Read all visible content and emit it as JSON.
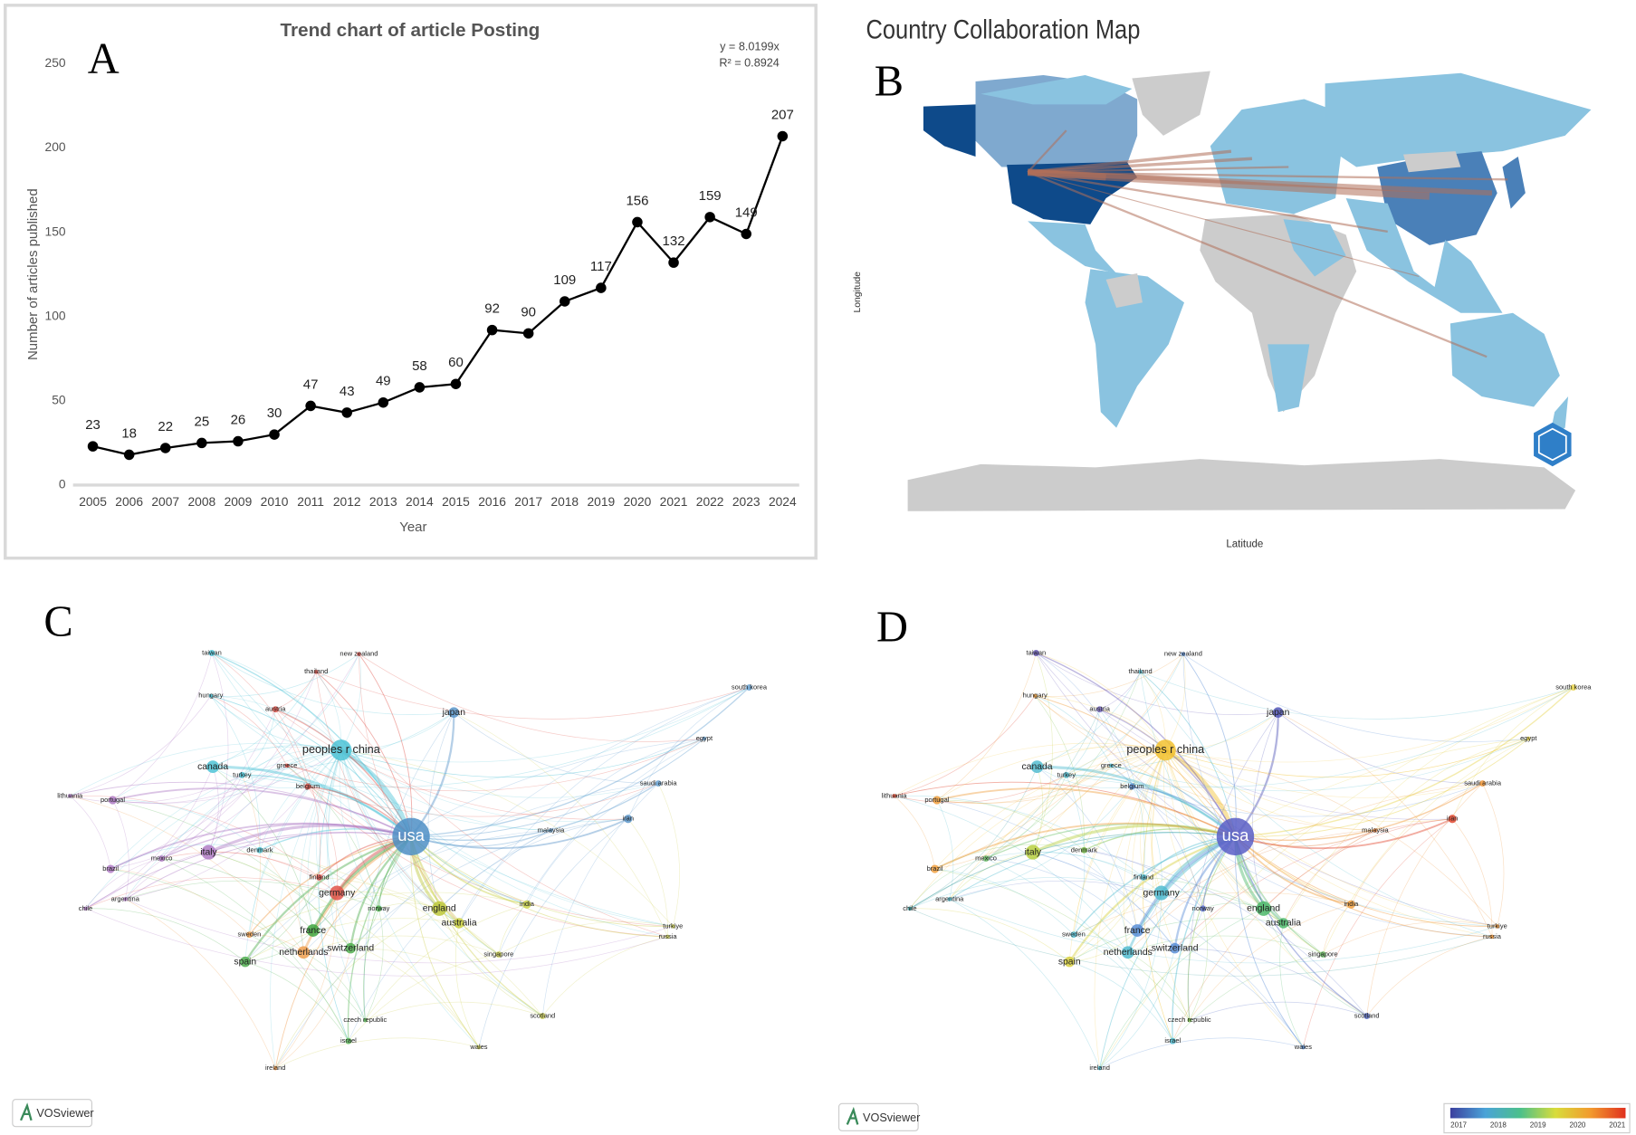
{
  "chart_data": {
    "type": "line",
    "title": "Trend chart of article Posting",
    "panel": "A",
    "categories": [
      "2005",
      "2006",
      "2007",
      "2008",
      "2009",
      "2010",
      "2011",
      "2012",
      "2013",
      "2014",
      "2015",
      "2016",
      "2017",
      "2018",
      "2019",
      "2020",
      "2021",
      "2022",
      "2023",
      "2024"
    ],
    "values": [
      23,
      18,
      22,
      25,
      26,
      30,
      47,
      43,
      49,
      58,
      60,
      92,
      90,
      109,
      117,
      156,
      132,
      159,
      149,
      207
    ],
    "color": "#000000",
    "ylim": [
      0,
      250
    ],
    "yticks": [
      0,
      50,
      100,
      150,
      200,
      250
    ],
    "x_label": "Year",
    "y_label": "Number of articles published",
    "annotations": [
      "y = 8.0199x",
      "R² = 0.8924"
    ]
  },
  "map": {
    "title": "Country Collaboration Map",
    "panel": "B",
    "y_label": "Longitude",
    "x_label": "Latitude"
  },
  "network_c": {
    "panel": "C",
    "watermark": "VOSviewer",
    "nodes": [
      {
        "label": "usa",
        "color": "#4f8fc6"
      },
      {
        "label": "peoples r china",
        "color": "#4ec3d6"
      },
      {
        "label": "japan",
        "color": "#5a95c9"
      },
      {
        "label": "south korea",
        "color": "#6aa3d3"
      },
      {
        "label": "egypt",
        "color": "#6aa3d3"
      },
      {
        "label": "saudi arabia",
        "color": "#6aa3d3"
      },
      {
        "label": "iran",
        "color": "#5a95c9"
      },
      {
        "label": "malaysia",
        "color": "#6aa3d3"
      },
      {
        "label": "india",
        "color": "#c9d24a"
      },
      {
        "label": "england",
        "color": "#bdc83a"
      },
      {
        "label": "australia",
        "color": "#c9cf3e"
      },
      {
        "label": "singapore",
        "color": "#d0d25a"
      },
      {
        "label": "scotland",
        "color": "#d0d25a"
      },
      {
        "label": "wales",
        "color": "#d0d25a"
      },
      {
        "label": "israel",
        "color": "#5cb85c"
      },
      {
        "label": "czech republic",
        "color": "#5cb85c"
      },
      {
        "label": "ireland",
        "color": "#f09a4a"
      },
      {
        "label": "spain",
        "color": "#4fae4f"
      },
      {
        "label": "netherlands",
        "color": "#f0a050"
      },
      {
        "label": "switzerland",
        "color": "#4fae4f"
      },
      {
        "label": "france",
        "color": "#3fa63f"
      },
      {
        "label": "sweden",
        "color": "#f0a050"
      },
      {
        "label": "norway",
        "color": "#4fae4f"
      },
      {
        "label": "germany",
        "color": "#e0534a"
      },
      {
        "label": "finland",
        "color": "#e0534a"
      },
      {
        "label": "denmark",
        "color": "#4ec3d6"
      },
      {
        "label": "italy",
        "color": "#b07cc6"
      },
      {
        "label": "mexico",
        "color": "#b07cc6"
      },
      {
        "label": "brazil",
        "color": "#b07cc6"
      },
      {
        "label": "argentina",
        "color": "#b07cc6"
      },
      {
        "label": "chile",
        "color": "#b07cc6"
      },
      {
        "label": "lithuania",
        "color": "#b07cc6"
      },
      {
        "label": "portugal",
        "color": "#b07cc6"
      },
      {
        "label": "canada",
        "color": "#4ec3d6"
      },
      {
        "label": "turkey",
        "color": "#4ec3d6"
      },
      {
        "label": "greece",
        "color": "#e0534a"
      },
      {
        "label": "belgium",
        "color": "#e0534a"
      },
      {
        "label": "austria",
        "color": "#e0534a"
      },
      {
        "label": "hungary",
        "color": "#4ec3d6"
      },
      {
        "label": "taiwan",
        "color": "#4ec3d6"
      },
      {
        "label": "thailand",
        "color": "#e0534a"
      },
      {
        "label": "new zealand",
        "color": "#e0534a"
      },
      {
        "label": "turkiye",
        "color": "#d0d25a"
      },
      {
        "label": "russia",
        "color": "#d0d25a"
      }
    ]
  },
  "network_d": {
    "panel": "D",
    "watermark": "VOSviewer",
    "legend_ticks": [
      2017,
      2018,
      2019,
      2020,
      2021
    ],
    "legend_colors": [
      "#3b3f9e",
      "#4aa3d8",
      "#4cc08a",
      "#d8dc3a",
      "#f29a2e",
      "#e0301e"
    ],
    "nodes": [
      {
        "label": "usa",
        "color": "#5b5fc7"
      },
      {
        "label": "peoples r china",
        "color": "#f2c230"
      },
      {
        "label": "japan",
        "color": "#5156b8"
      },
      {
        "label": "south korea",
        "color": "#e6d24a"
      },
      {
        "label": "egypt",
        "color": "#e6d24a"
      },
      {
        "label": "saudi arabia",
        "color": "#f0963a"
      },
      {
        "label": "iran",
        "color": "#e2462e"
      },
      {
        "label": "malaysia",
        "color": "#e08040"
      },
      {
        "label": "india",
        "color": "#f0a040"
      },
      {
        "label": "england",
        "color": "#4cb86a"
      },
      {
        "label": "australia",
        "color": "#4cb86a"
      },
      {
        "label": "singapore",
        "color": "#6cc06a"
      },
      {
        "label": "scotland",
        "color": "#5b6fc7"
      },
      {
        "label": "wales",
        "color": "#5b8fd7"
      },
      {
        "label": "israel",
        "color": "#52bcd0"
      },
      {
        "label": "czech republic",
        "color": "#7cc04a"
      },
      {
        "label": "ireland",
        "color": "#52bcd0"
      },
      {
        "label": "spain",
        "color": "#d8d040"
      },
      {
        "label": "netherlands",
        "color": "#52bcd0"
      },
      {
        "label": "switzerland",
        "color": "#5b8fd7"
      },
      {
        "label": "france",
        "color": "#5b8fd7"
      },
      {
        "label": "sweden",
        "color": "#52bcd0"
      },
      {
        "label": "norway",
        "color": "#5b6fc7"
      },
      {
        "label": "germany",
        "color": "#52bcd0"
      },
      {
        "label": "finland",
        "color": "#52bcd0"
      },
      {
        "label": "denmark",
        "color": "#7cc04a"
      },
      {
        "label": "italy",
        "color": "#b8d040"
      },
      {
        "label": "mexico",
        "color": "#6cc06a"
      },
      {
        "label": "brazil",
        "color": "#f0a040"
      },
      {
        "label": "argentina",
        "color": "#52bcd0"
      },
      {
        "label": "chile",
        "color": "#3fa0a0"
      },
      {
        "label": "lithuania",
        "color": "#e2462e"
      },
      {
        "label": "portugal",
        "color": "#f0a040"
      },
      {
        "label": "canada",
        "color": "#52bcd0"
      },
      {
        "label": "turkey",
        "color": "#52bcd0"
      },
      {
        "label": "greece",
        "color": "#52bcd0"
      },
      {
        "label": "belgium",
        "color": "#5b8fd7"
      },
      {
        "label": "austria",
        "color": "#7a6cc6"
      },
      {
        "label": "hungary",
        "color": "#f0a040"
      },
      {
        "label": "taiwan",
        "color": "#6a5cb8"
      },
      {
        "label": "thailand",
        "color": "#52bcd0"
      },
      {
        "label": "new zealand",
        "color": "#5b8fd7"
      },
      {
        "label": "turkiye",
        "color": "#f0963a"
      },
      {
        "label": "russia",
        "color": "#f0963a"
      }
    ]
  }
}
